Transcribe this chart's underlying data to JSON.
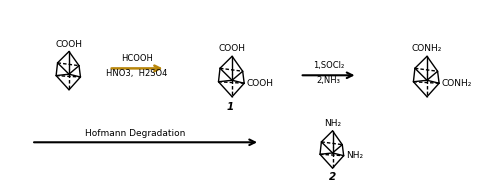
{
  "bg_color": "#ffffff",
  "struct_color": "#000000",
  "reagent1_line1": "HCOOH",
  "reagent1_line2": "HNO3,  H2SO4",
  "reagent2_line1": "1,SOCl₂",
  "reagent2_line2": "2,NH₃",
  "reagent3": "Hofmann Degradation",
  "label1": "1",
  "label2": "2",
  "arrow1_color": "#b8860b",
  "arrow2_color": "#000000",
  "arrow3_color": "#000000"
}
